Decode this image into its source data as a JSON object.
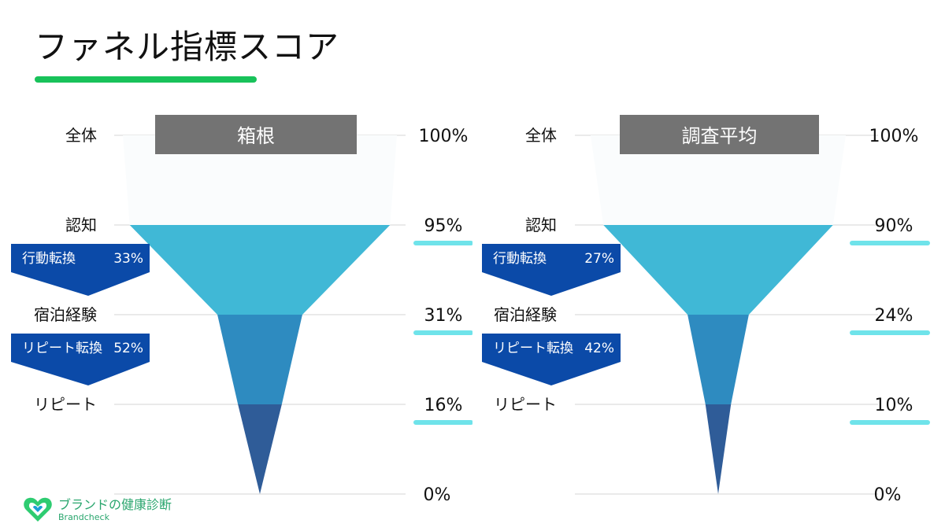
{
  "page": {
    "title": "ファネル指標スコア"
  },
  "logo": {
    "name": "ブランドの健康診断",
    "subtitle": "Brandcheck"
  },
  "chart_data": [
    {
      "type": "funnel",
      "title": "箱根",
      "stages": [
        "全体",
        "認知",
        "宿泊経験",
        "リピート"
      ],
      "values": [
        100,
        95,
        31,
        16
      ],
      "value_labels": [
        "100%",
        "95%",
        "31%",
        "16%"
      ],
      "axis_zero_label": "0%",
      "conversions": [
        {
          "label": "行動転換",
          "value": "33%"
        },
        {
          "label": "リピート転換",
          "value": "52%"
        }
      ]
    },
    {
      "type": "funnel",
      "title": "調査平均",
      "stages": [
        "全体",
        "認知",
        "宿泊経験",
        "リピート"
      ],
      "values": [
        100,
        90,
        24,
        10
      ],
      "value_labels": [
        "100%",
        "90%",
        "24%",
        "10%"
      ],
      "axis_zero_label": "0%",
      "conversions": [
        {
          "label": "行動転換",
          "value": "27%"
        },
        {
          "label": "リピート転換",
          "value": "42%"
        }
      ]
    }
  ],
  "colors": {
    "banner": "#737373",
    "band_top": "#fafcfd",
    "band_awareness": "#40b8d6",
    "band_stay": "#2e8bc0",
    "band_repeat": "#2f5c98",
    "conversion_arrow": "#0b4aa8",
    "value_underline": "#6fe3ea",
    "title_underline": "#18c25a",
    "gridline": "#d6d6d6"
  }
}
